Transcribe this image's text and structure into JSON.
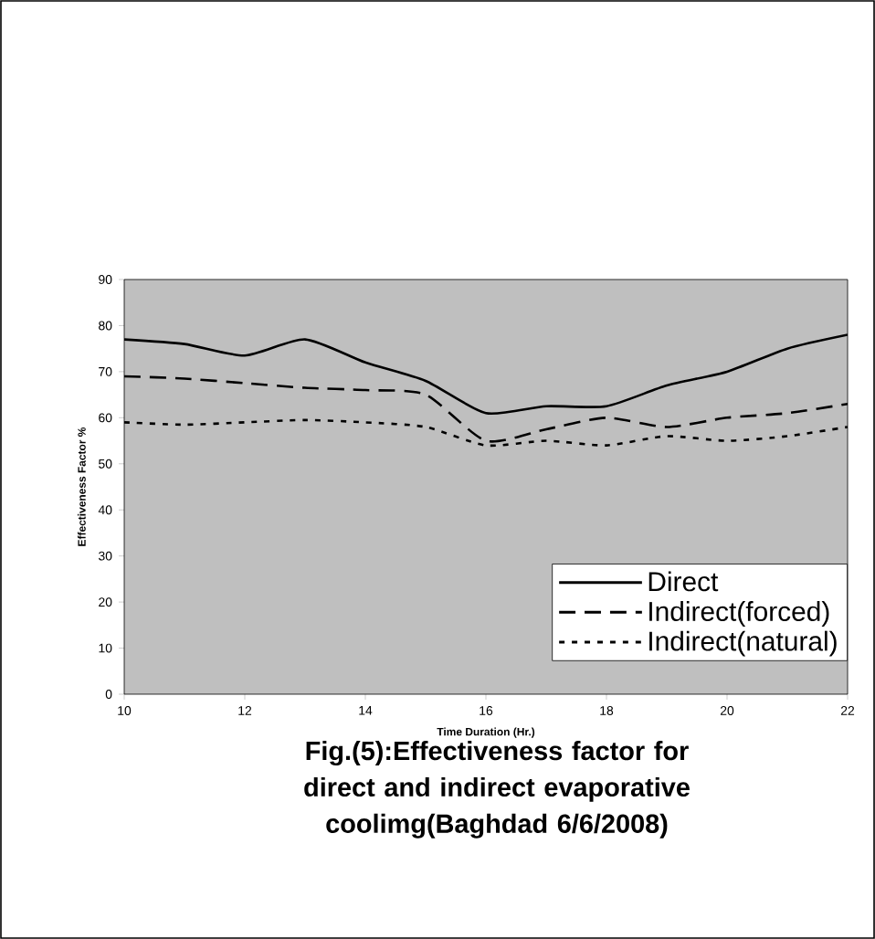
{
  "chart_data": {
    "type": "line",
    "title": "Fig.(5):Effectiveness factor for direct and indirect evaporative coolimg(Baghdad 6/6/2008)",
    "xlabel": "Time Duration (Hr.)",
    "ylabel": "Effectiveness Factor %",
    "x": [
      10,
      11,
      12,
      13,
      14,
      15,
      16,
      17,
      18,
      19,
      20,
      21,
      22
    ],
    "series": [
      {
        "name": "Direct",
        "color": "#000000",
        "line_style": "solid",
        "values": [
          77,
          76,
          73.5,
          77,
          72,
          68,
          61,
          62.5,
          62.5,
          67,
          70,
          75,
          78
        ]
      },
      {
        "name": "Indirect(forced)",
        "color": "#000000",
        "line_style": "dashed",
        "values": [
          69,
          68.5,
          67.5,
          66.5,
          66,
          65,
          55,
          57.5,
          60,
          58,
          60,
          61,
          63
        ]
      },
      {
        "name": "Indirect(natural)",
        "color": "#000000",
        "line_style": "dotted",
        "values": [
          59,
          58.5,
          59,
          59.5,
          59,
          58,
          54,
          55,
          54,
          56,
          55,
          56,
          58
        ]
      }
    ],
    "xlim": [
      10,
      22
    ],
    "ylim": [
      0,
      90
    ],
    "xticks": [
      10,
      12,
      14,
      16,
      18,
      20,
      22
    ],
    "yticks": [
      0,
      10,
      20,
      30,
      40,
      50,
      60,
      70,
      80,
      90
    ],
    "grid": false,
    "legend": "bottom right",
    "marker": "none"
  }
}
